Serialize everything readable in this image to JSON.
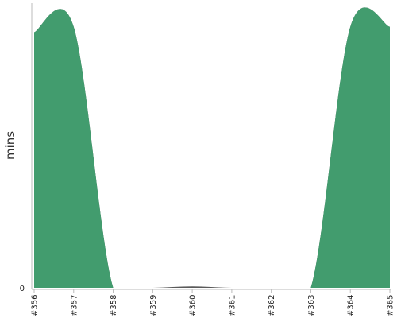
{
  "chart_data": {
    "type": "area",
    "title": "",
    "xlabel": "",
    "ylabel": "mins",
    "categories": [
      "#356",
      "#357",
      "#358",
      "#359",
      "#360",
      "#361",
      "#362",
      "#363",
      "#364",
      "#365"
    ],
    "yticks": [
      "0"
    ],
    "ylim": [
      0,
      100
    ],
    "grid": false,
    "legend": "none",
    "series": [
      {
        "color": "#5a5a5a",
        "values": [
          94,
          96,
          0,
          0,
          0.5,
          0,
          0,
          0,
          96,
          96
        ]
      },
      {
        "color": "#429c6e",
        "values": [
          94,
          96,
          0,
          0,
          0,
          0,
          0,
          0,
          96,
          96
        ]
      }
    ],
    "colors": {
      "axis": "#bbbbbb"
    }
  }
}
